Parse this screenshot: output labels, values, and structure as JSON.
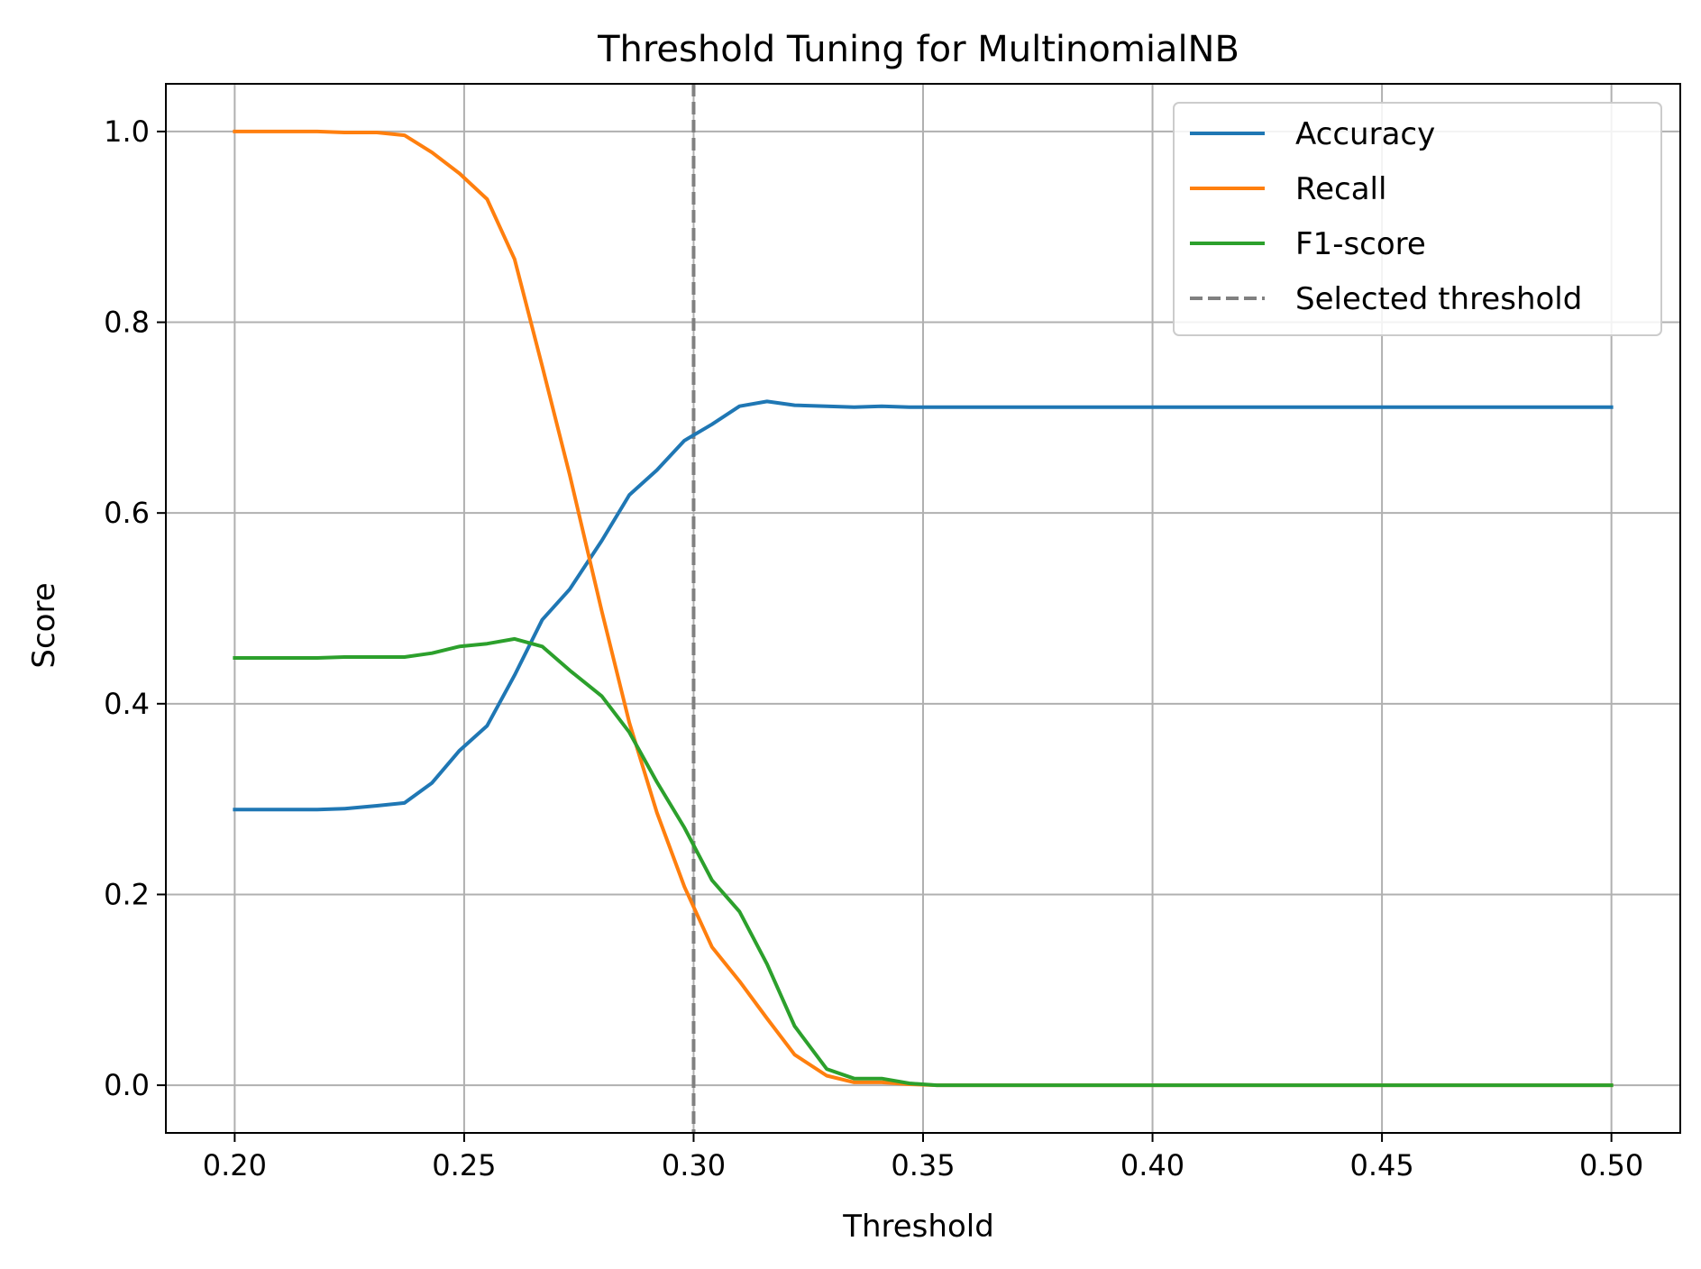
{
  "chart_data": {
    "type": "line",
    "title": "Threshold Tuning for MultinomialNB",
    "xlabel": "Threshold",
    "ylabel": "Score",
    "xlim": [
      0.185,
      0.515
    ],
    "ylim": [
      -0.05,
      1.05
    ],
    "xticks": [
      0.2,
      0.25,
      0.3,
      0.35,
      0.4,
      0.45,
      0.5
    ],
    "xtick_labels": [
      "0.20",
      "0.25",
      "0.30",
      "0.35",
      "0.40",
      "0.45",
      "0.50"
    ],
    "yticks": [
      0.0,
      0.2,
      0.4,
      0.6,
      0.8,
      1.0
    ],
    "ytick_labels": [
      "0.0",
      "0.2",
      "0.4",
      "0.6",
      "0.8",
      "1.0"
    ],
    "grid": true,
    "legend_position": "upper right",
    "series": [
      {
        "name": "Accuracy",
        "color": "#1f77b4",
        "style": "solid",
        "x": [
          0.2,
          0.206,
          0.212,
          0.218,
          0.224,
          0.231,
          0.237,
          0.243,
          0.249,
          0.255,
          0.261,
          0.267,
          0.273,
          0.28,
          0.286,
          0.292,
          0.298,
          0.304,
          0.31,
          0.316,
          0.322,
          0.329,
          0.335,
          0.341,
          0.347,
          0.353,
          0.5
        ],
        "y": [
          0.289,
          0.289,
          0.289,
          0.289,
          0.29,
          0.293,
          0.296,
          0.317,
          0.351,
          0.377,
          0.43,
          0.488,
          0.52,
          0.571,
          0.619,
          0.645,
          0.676,
          0.693,
          0.712,
          0.717,
          0.713,
          0.712,
          0.711,
          0.712,
          0.711,
          0.711,
          0.711
        ]
      },
      {
        "name": "Recall",
        "color": "#ff7f0e",
        "style": "solid",
        "x": [
          0.2,
          0.206,
          0.212,
          0.218,
          0.224,
          0.231,
          0.237,
          0.243,
          0.249,
          0.255,
          0.261,
          0.267,
          0.273,
          0.28,
          0.286,
          0.292,
          0.298,
          0.304,
          0.31,
          0.316,
          0.322,
          0.329,
          0.335,
          0.341,
          0.347,
          0.353,
          0.5
        ],
        "y": [
          1.0,
          1.0,
          1.0,
          1.0,
          0.999,
          0.999,
          0.996,
          0.978,
          0.956,
          0.929,
          0.866,
          0.754,
          0.64,
          0.497,
          0.38,
          0.286,
          0.208,
          0.145,
          0.109,
          0.07,
          0.032,
          0.01,
          0.003,
          0.003,
          0.001,
          0.0,
          0.0
        ]
      },
      {
        "name": "F1-score",
        "color": "#2ca02c",
        "style": "solid",
        "x": [
          0.2,
          0.206,
          0.212,
          0.218,
          0.224,
          0.231,
          0.237,
          0.243,
          0.249,
          0.255,
          0.261,
          0.267,
          0.273,
          0.28,
          0.286,
          0.292,
          0.298,
          0.304,
          0.31,
          0.316,
          0.322,
          0.329,
          0.335,
          0.341,
          0.347,
          0.353,
          0.5
        ],
        "y": [
          0.448,
          0.448,
          0.448,
          0.448,
          0.449,
          0.449,
          0.449,
          0.453,
          0.46,
          0.463,
          0.468,
          0.46,
          0.435,
          0.408,
          0.37,
          0.318,
          0.27,
          0.215,
          0.182,
          0.127,
          0.062,
          0.017,
          0.007,
          0.007,
          0.002,
          0.0,
          0.0
        ]
      }
    ],
    "reference_lines": [
      {
        "name": "Selected threshold",
        "orientation": "vertical",
        "x": 0.3,
        "color": "#808080",
        "style": "dashed"
      }
    ]
  }
}
